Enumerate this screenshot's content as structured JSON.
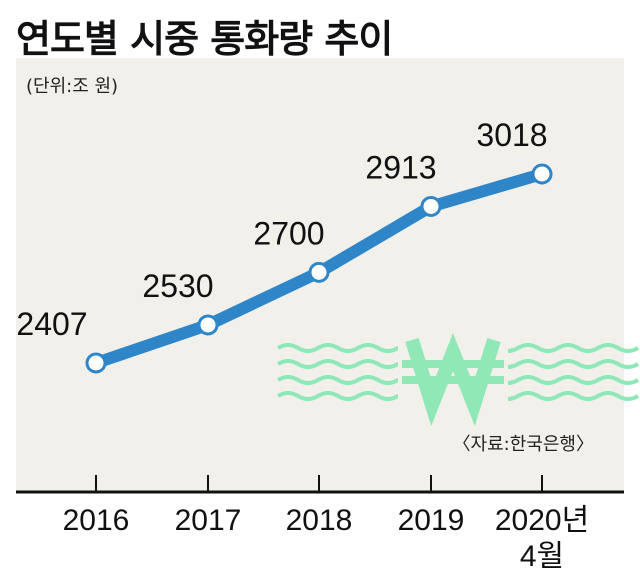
{
  "header": {
    "title": "연도별 시중 통화량 추이",
    "unit": "(단위:조 원)",
    "source": "〈자료:한국은행〉"
  },
  "colors": {
    "line": "#2e86c8",
    "watermark": "#8fe8b5",
    "panel": "#f1f0eb"
  },
  "watermark_icon": "won-sign-waves-icon",
  "chart_data": {
    "type": "line",
    "title": "연도별 시중 통화량 추이",
    "ylabel": "(단위:조 원)",
    "xlabel": "",
    "categories": [
      "2016",
      "2017",
      "2018",
      "2019",
      "2020년 4월"
    ],
    "tick_labels": [
      [
        "2016"
      ],
      [
        "2017"
      ],
      [
        "2018"
      ],
      [
        "2019"
      ],
      [
        "2020년",
        "4월"
      ]
    ],
    "values": [
      2407,
      2530,
      2700,
      2913,
      3018
    ],
    "ylim": [
      2200,
      3150
    ],
    "grid": false,
    "legend": "none"
  }
}
